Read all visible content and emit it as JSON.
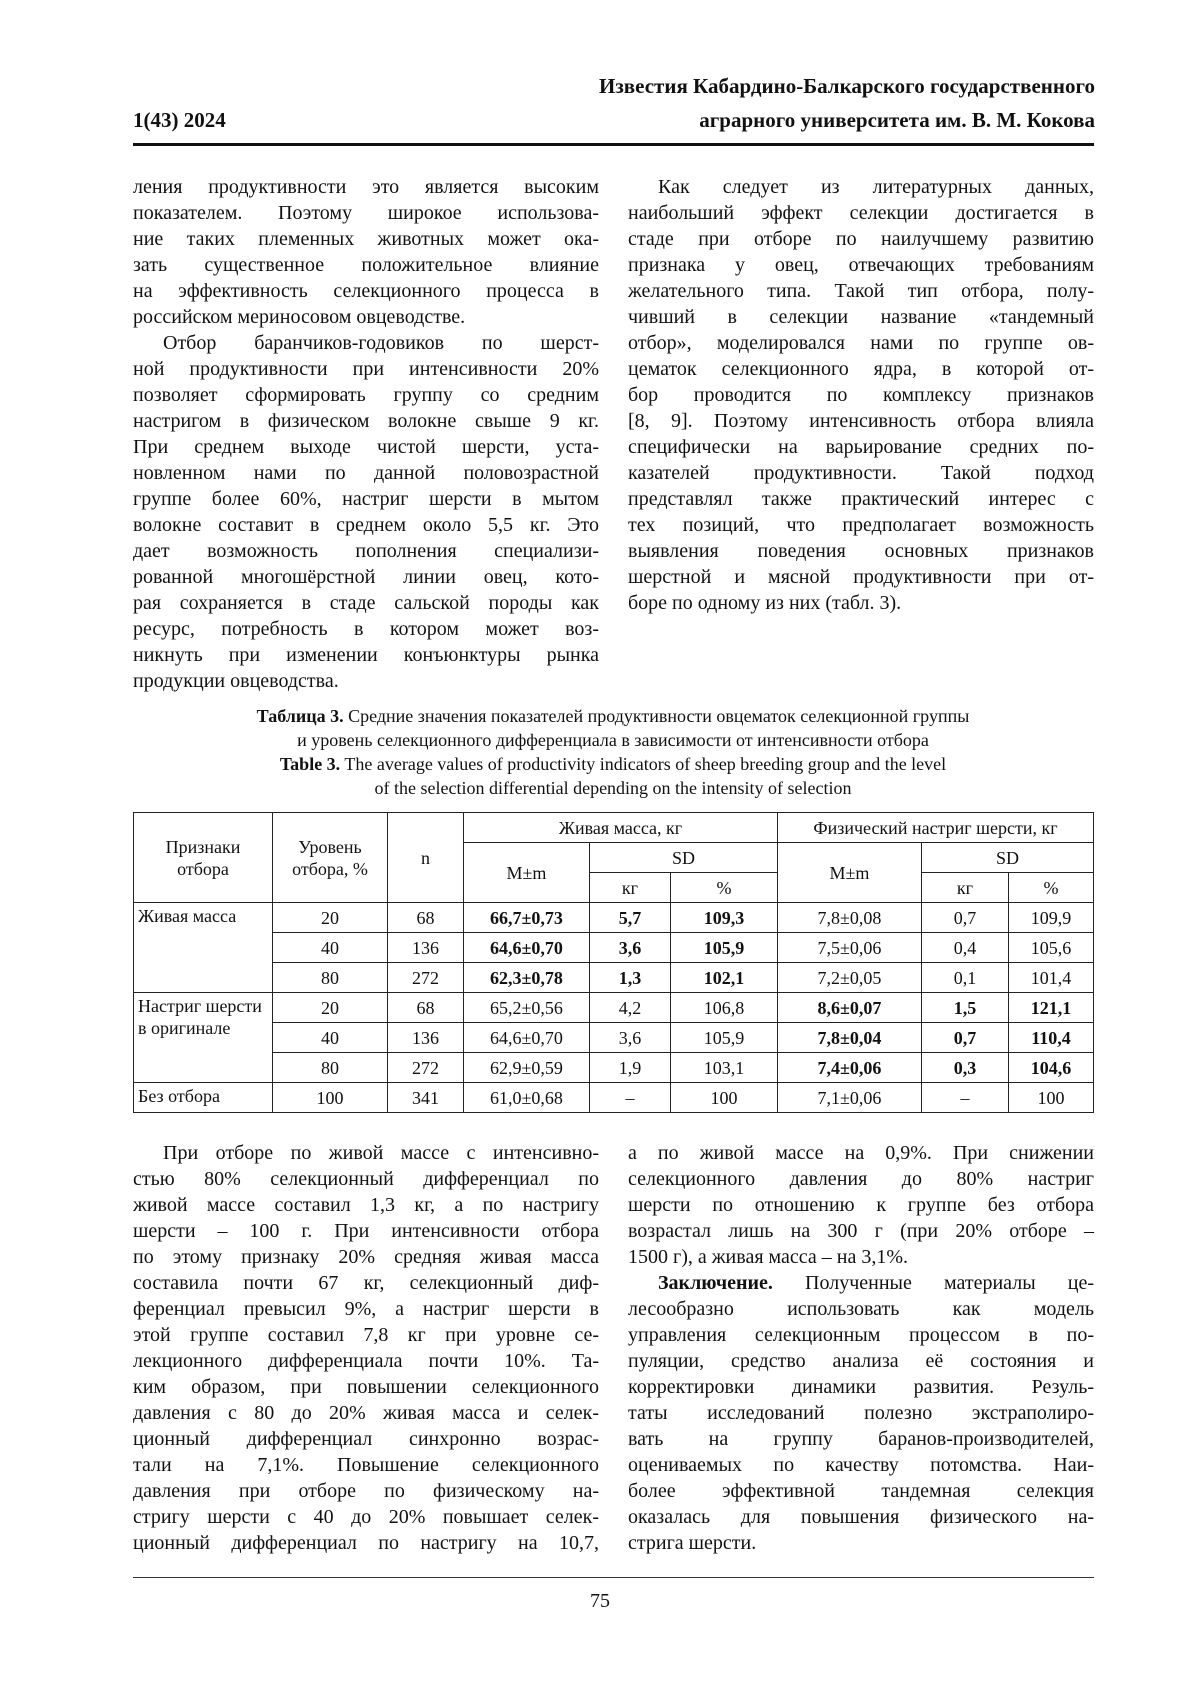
{
  "header": {
    "line1": "Известия Кабардино-Балкарского государственного",
    "issue": "1(43) 2024",
    "line2": "аграрного университета им. В. М. Кокова"
  },
  "top": {
    "left": [
      {
        "indent": false,
        "lines": [
          "ления продуктивности это является высоким",
          "показателем. Поэтому широкое использова-",
          "ние таких племенных животных может ока-",
          "зать существенное положительное влияние",
          "на эффективность селекционного процесса в",
          "российском мериносовом овцеводстве."
        ]
      },
      {
        "indent": true,
        "lines": [
          "Отбор баранчиков-годовиков по шерст-",
          "ной продуктивности при интенсивности 20%",
          "позволяет сформировать группу со средним",
          "настригом в физическом волокне свыше 9 кг.",
          "При среднем выходе чистой шерсти, уста-",
          "новленном нами по данной половозрастной",
          "группе более 60%, настриг шерсти в мытом",
          "волокне составит в среднем около 5,5 кг. Это",
          "дает возможность пополнения специализи-",
          "рованной многошёрстной линии овец, кото-",
          "рая сохраняется в стаде сальской породы как",
          "ресурс, потребность в котором может воз-",
          "никнуть при изменении конъюнктуры рынка",
          "продукции овцеводства."
        ]
      }
    ],
    "right": [
      {
        "indent": true,
        "lines": [
          "Как следует из литературных данных,",
          "наибольший эффект селекции достигается в",
          "стаде при отборе по наилучшему развитию",
          "признака у овец, отвечающих требованиям",
          "желательного типа. Такой тип отбора, полу-",
          "чивший в селекции название «тандемный",
          "отбор», моделировался нами по группе ов-",
          "цематок селекционного ядра, в которой от-",
          "бор проводится по комплексу признаков",
          "[8, 9]. Поэтому интенсивность отбора влияла",
          "специфически на варьирование средних по-",
          "казателей продуктивности. Такой подход",
          "представлял также практический интерес с",
          "тех позиций, что предполагает возможность",
          "выявления поведения основных признаков",
          "шерстной и мясной продуктивности при от-",
          "боре по одному из них (табл. 3)."
        ]
      }
    ]
  },
  "caption": [
    {
      "lead": "Таблица 3.",
      "text": "Средние значения показателей продуктивности овцематок селекционной группы"
    },
    {
      "text": "и уровень селекционного дифференциала в зависимости от интенсивности отбора"
    },
    {
      "lead": "Table 3.",
      "text": "The average values of productivity indicators of sheep breeding group and the level"
    },
    {
      "text": "of the selection differential depending on the intensity of selection"
    }
  ],
  "table": {
    "header": {
      "trait": "Признаки отбора",
      "level": "Уровень отбора, %",
      "n": "n",
      "live": {
        "title": "Живая масса, кг",
        "mean": "M±m",
        "sd": "SD",
        "kg": "кг",
        "pct": "%"
      },
      "wool": {
        "title": "Физический настриг шерсти, кг",
        "mean": "M±m",
        "sd": "SD",
        "kg": "кг",
        "pct": "%"
      }
    },
    "groups": [
      {
        "label": "Живая масса",
        "bold": [
          2,
          3,
          4
        ],
        "rows": [
          [
            "20",
            "68",
            "66,7±0,73",
            "5,7",
            "109,3",
            "7,8±0,08",
            "0,7",
            "109,9"
          ],
          [
            "40",
            "136",
            "64,6±0,70",
            "3,6",
            "105,9",
            "7,5±0,06",
            "0,4",
            "105,6"
          ],
          [
            "80",
            "272",
            "62,3±0,78",
            "1,3",
            "102,1",
            "7,2±0,05",
            "0,1",
            "101,4"
          ]
        ]
      },
      {
        "label": "Настриг шерсти в оригинале",
        "bold": [
          5,
          6,
          7
        ],
        "rows": [
          [
            "20",
            "68",
            "65,2±0,56",
            "4,2",
            "106,8",
            "8,6±0,07",
            "1,5",
            "121,1"
          ],
          [
            "40",
            "136",
            "64,6±0,70",
            "3,6",
            "105,9",
            "7,8±0,04",
            "0,7",
            "110,4"
          ],
          [
            "80",
            "272",
            "62,9±0,59",
            "1,9",
            "103,1",
            "7,4±0,06",
            "0,3",
            "104,6"
          ]
        ]
      },
      {
        "label": "Без отбора",
        "bold": [],
        "rows": [
          [
            "100",
            "341",
            "61,0±0,68",
            "–",
            "100",
            "7,1±0,06",
            "–",
            "100"
          ]
        ]
      }
    ]
  },
  "bottom": {
    "left": [
      {
        "indent": true,
        "continues": true,
        "lines": [
          "При отборе по живой массе с интенсивно-",
          "стью 80% селекционный дифференциал по",
          "живой массе составил 1,3 кг, а по настригу",
          "шерсти – 100 г. При интенсивности отбора",
          "по этому признаку 20% средняя живая масса",
          "составила почти 67 кг, селекционный диф-",
          "ференциал превысил 9%, а настриг шерсти в",
          "этой группе составил 7,8 кг при уровне се-",
          "лекционного дифференциала почти 10%. Та-",
          "ким образом, при повышении селекционного",
          "давления с 80 до 20% живая масса и селек-",
          "ционный дифференциал синхронно возрас-",
          "тали на 7,1%. Повышение селекционного",
          "давления при отборе по физическому на-",
          "стригу шерсти с 40 до 20% повышает селек-",
          "ционный дифференциал по настригу на 10,7,"
        ]
      }
    ],
    "right": [
      {
        "indent": false,
        "lines": [
          "а по живой массе на 0,9%. При снижении",
          "селекционного давления до 80% настриг",
          "шерсти по отношению к группе без отбора",
          "возрастал лишь на 300 г (при 20% отборе –",
          "1500 г), а живая масса – на 3,1%."
        ]
      },
      {
        "indent": true,
        "lead": "Заключение.",
        "lines": [
          "Полученные материалы це-",
          "лесообразно использовать как модель",
          "управления селекционным процессом в по-",
          "пуляции, средство анализа её состояния и",
          "корректировки динамики развития. Резуль-",
          "таты исследований полезно экстраполиро-",
          "вать на группу баранов-производителей,",
          "оцениваемых по качеству потомства. Наи-",
          "более эффективной тандемная селекция",
          "оказалась для повышения физического на-",
          "стрига шерсти."
        ]
      }
    ]
  },
  "footer": {
    "page": "75"
  }
}
